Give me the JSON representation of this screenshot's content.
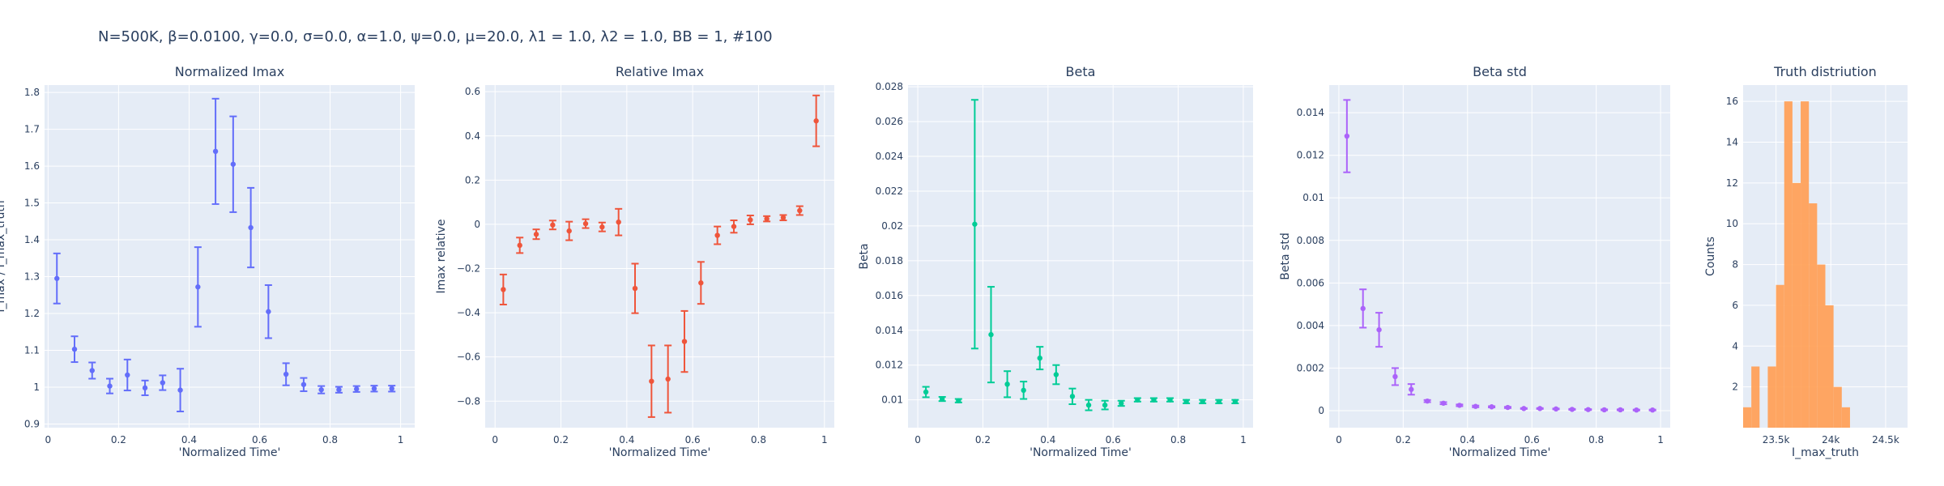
{
  "figure_title": "N=500K, β=0.0100, γ=0.0, σ=0.0,  α=1.0, ψ=0.0, μ=20.0, λ1 = 1.0, λ2 = 1.0, BB = 1, #100",
  "plot_bg": "#e5ecf6",
  "grid_color": "#ffffff",
  "text_color": "#2a3f5f",
  "chart_data": [
    {
      "id": "normalized-imax",
      "type": "scatter",
      "title": "Normalized Imax",
      "xlabel": "'Normalized Time'",
      "ylabel": "I_max / I_max_truth",
      "color": "#636efa",
      "xlim": [
        -0.01,
        1.04
      ],
      "ylim": [
        0.89,
        1.82
      ],
      "xticks": [
        0,
        0.2,
        0.4,
        0.6,
        0.8,
        1
      ],
      "xtick_labels": [
        "0",
        "0.2",
        "0.4",
        "0.6",
        "0.8",
        "1"
      ],
      "yticks": [
        0.9,
        1,
        1.1,
        1.2,
        1.3,
        1.4,
        1.5,
        1.6,
        1.7,
        1.8
      ],
      "ytick_labels": [
        "0.9",
        "1",
        "1.1",
        "1.2",
        "1.3",
        "1.4",
        "1.5",
        "1.6",
        "1.7",
        "1.8"
      ],
      "series": [
        {
          "x": [
            0.025,
            0.075,
            0.125,
            0.175,
            0.225,
            0.275,
            0.325,
            0.375,
            0.425,
            0.475,
            0.525,
            0.575,
            0.625,
            0.675,
            0.725,
            0.775,
            0.825,
            0.875,
            0.925,
            0.975
          ],
          "y": [
            1.295,
            1.103,
            1.045,
            1.003,
            1.033,
            0.998,
            1.012,
            0.992,
            1.272,
            1.64,
            1.605,
            1.433,
            1.205,
            1.035,
            1.007,
            0.993,
            0.993,
            0.995,
            0.996,
            0.996
          ],
          "err": [
            0.068,
            0.035,
            0.022,
            0.02,
            0.042,
            0.02,
            0.02,
            0.058,
            0.108,
            0.143,
            0.13,
            0.108,
            0.072,
            0.03,
            0.018,
            0.01,
            0.008,
            0.008,
            0.008,
            0.008
          ]
        }
      ]
    },
    {
      "id": "relative-imax",
      "type": "scatter",
      "title": "Relative Imax",
      "xlabel": "'Normalized Time'",
      "ylabel": "Imax relative",
      "color": "#ef553b",
      "xlim": [
        -0.03,
        1.03
      ],
      "ylim": [
        -0.92,
        0.63
      ],
      "xticks": [
        0,
        0.2,
        0.4,
        0.6,
        0.8,
        1
      ],
      "xtick_labels": [
        "0",
        "0.2",
        "0.4",
        "0.6",
        "0.8",
        "1"
      ],
      "yticks": [
        -0.8,
        -0.6,
        -0.4,
        -0.2,
        0,
        0.2,
        0.4,
        0.6
      ],
      "ytick_labels": [
        "−0.8",
        "−0.6",
        "−0.4",
        "−0.2",
        "0",
        "0.2",
        "0.4",
        "0.6"
      ],
      "series": [
        {
          "x": [
            0.025,
            0.075,
            0.125,
            0.175,
            0.225,
            0.275,
            0.325,
            0.375,
            0.425,
            0.475,
            0.525,
            0.575,
            0.625,
            0.675,
            0.725,
            0.775,
            0.825,
            0.875,
            0.925,
            0.975
          ],
          "y": [
            -0.295,
            -0.095,
            -0.045,
            -0.003,
            -0.03,
            0.003,
            -0.012,
            0.01,
            -0.29,
            -0.71,
            -0.7,
            -0.53,
            -0.265,
            -0.05,
            -0.01,
            0.02,
            0.025,
            0.03,
            0.062,
            0.468
          ],
          "err": [
            0.068,
            0.035,
            0.022,
            0.02,
            0.042,
            0.02,
            0.02,
            0.06,
            0.112,
            0.162,
            0.152,
            0.138,
            0.095,
            0.04,
            0.028,
            0.02,
            0.012,
            0.012,
            0.02,
            0.115
          ]
        }
      ]
    },
    {
      "id": "beta",
      "type": "scatter",
      "title": "Beta",
      "xlabel": "'Normalized Time'",
      "ylabel": "Beta",
      "color": "#00cc96",
      "xlim": [
        -0.03,
        1.03
      ],
      "ylim": [
        0.0084,
        0.0281
      ],
      "xticks": [
        0,
        0.2,
        0.4,
        0.6,
        0.8,
        1
      ],
      "xtick_labels": [
        "0",
        "0.2",
        "0.4",
        "0.6",
        "0.8",
        "1"
      ],
      "yticks": [
        0.01,
        0.012,
        0.014,
        0.016,
        0.018,
        0.02,
        0.022,
        0.024,
        0.026,
        0.028
      ],
      "ytick_labels": [
        "0.01",
        "0.012",
        "0.014",
        "0.016",
        "0.018",
        "0.02",
        "0.022",
        "0.024",
        "0.026",
        "0.028"
      ],
      "series": [
        {
          "x": [
            0.025,
            0.075,
            0.125,
            0.175,
            0.225,
            0.275,
            0.325,
            0.375,
            0.425,
            0.475,
            0.525,
            0.575,
            0.625,
            0.675,
            0.725,
            0.775,
            0.825,
            0.875,
            0.925,
            0.975
          ],
          "y": [
            0.01045,
            0.01005,
            0.00995,
            0.0201,
            0.01375,
            0.0109,
            0.01055,
            0.0124,
            0.01145,
            0.0102,
            0.0097,
            0.0097,
            0.0098,
            0.01,
            0.01,
            0.01,
            0.0099,
            0.0099,
            0.0099,
            0.0099
          ],
          "err": [
            0.0003,
            0.00012,
            0.0001,
            0.00715,
            0.00275,
            0.00075,
            0.0005,
            0.00065,
            0.00055,
            0.00045,
            0.0003,
            0.00025,
            0.00015,
            0.0001,
            0.0001,
            0.0001,
            0.0001,
            0.0001,
            0.0001,
            0.0001
          ]
        }
      ]
    },
    {
      "id": "beta-std",
      "type": "scatter",
      "title": "Beta std",
      "xlabel": "'Normalized Time'",
      "ylabel": "Beta std",
      "color": "#ab63fa",
      "xlim": [
        -0.03,
        1.03
      ],
      "ylim": [
        -0.0008,
        0.0153
      ],
      "xticks": [
        0,
        0.2,
        0.4,
        0.6,
        0.8,
        1
      ],
      "xtick_labels": [
        "0",
        "0.2",
        "0.4",
        "0.6",
        "0.8",
        "1"
      ],
      "yticks": [
        0,
        0.002,
        0.004,
        0.006,
        0.008,
        0.01,
        0.012,
        0.014
      ],
      "ytick_labels": [
        "0",
        "0.002",
        "0.004",
        "0.006",
        "0.008",
        "0.01",
        "0.012",
        "0.014"
      ],
      "series": [
        {
          "x": [
            0.025,
            0.075,
            0.125,
            0.175,
            0.225,
            0.275,
            0.325,
            0.375,
            0.425,
            0.475,
            0.525,
            0.575,
            0.625,
            0.675,
            0.725,
            0.775,
            0.825,
            0.875,
            0.925,
            0.975
          ],
          "y": [
            0.0129,
            0.0048,
            0.0038,
            0.0016,
            0.001,
            0.00045,
            0.00035,
            0.00025,
            0.0002,
            0.00018,
            0.00015,
            0.0001,
            0.0001,
            8e-05,
            6e-05,
            5e-05,
            4e-05,
            4e-05,
            3e-05,
            3e-05
          ],
          "err": [
            0.0017,
            0.0009,
            0.0008,
            0.0004,
            0.00025,
            5e-05,
            5e-05,
            4e-05,
            4e-05,
            3e-05,
            3e-05,
            2e-05,
            2e-05,
            2e-05,
            2e-05,
            2e-05,
            2e-05,
            2e-05,
            2e-05,
            2e-05
          ]
        }
      ]
    },
    {
      "id": "truth-distribution",
      "type": "bar",
      "title": "Truth distriution",
      "xlabel": "I_max_truth",
      "ylabel": "Counts",
      "color": "#ffa15a",
      "xlim": [
        23200,
        24700
      ],
      "ylim": [
        0,
        16.8
      ],
      "xticks": [
        23500,
        24000,
        24500
      ],
      "xtick_labels": [
        "23.5k",
        "24k",
        "24.5k"
      ],
      "yticks": [
        2,
        4,
        6,
        8,
        10,
        12,
        14,
        16
      ],
      "ytick_labels": [
        "2",
        "4",
        "6",
        "8",
        "10",
        "12",
        "14",
        "16"
      ],
      "bin_start": 23200,
      "bin_width": 75,
      "counts": [
        1,
        3,
        0,
        3,
        7,
        16,
        12,
        16,
        11,
        8,
        6,
        2,
        1
      ]
    }
  ]
}
